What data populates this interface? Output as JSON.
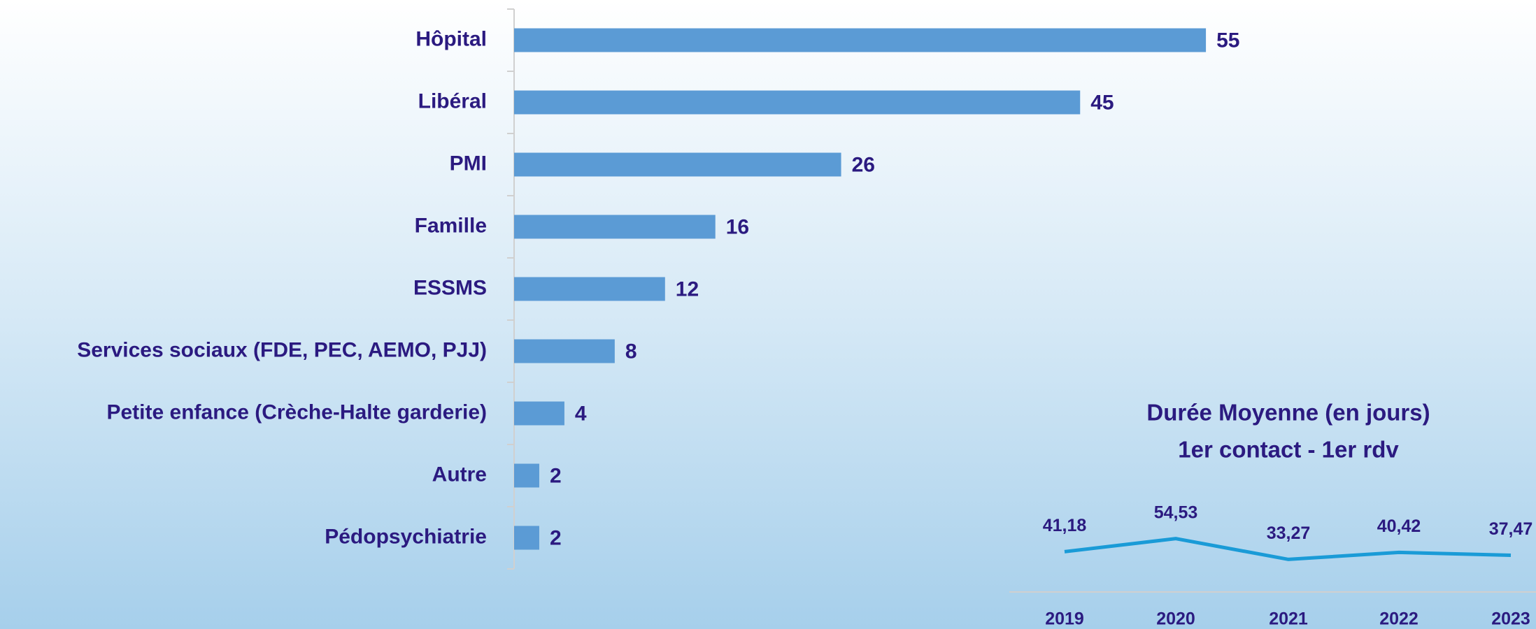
{
  "chart_data": [
    {
      "type": "hbar",
      "categories": [
        "Hôpital",
        "Libéral",
        "PMI",
        "Famille",
        "ESSMS",
        "Services sociaux (FDE, PEC, AEMO, PJJ)",
        "Petite enfance (Crèche-Halte garderie)",
        "Autre",
        "Pédopsychiatrie"
      ],
      "values": [
        55,
        45,
        26,
        16,
        12,
        8,
        4,
        2,
        2
      ],
      "color": "#5b9bd5",
      "xlim": [
        0,
        60
      ]
    },
    {
      "type": "line",
      "title": "Durée Moyenne (en jours)",
      "subtitle": "1er contact - 1er rdv",
      "categories": [
        "2019",
        "2020",
        "2021",
        "2022",
        "2023"
      ],
      "values": [
        41.18,
        54.53,
        33.27,
        40.42,
        37.47
      ],
      "value_labels": [
        "41,18",
        "54,53",
        "33,27",
        "40,42",
        "37,47"
      ],
      "color": "#1a9bd7",
      "ylim": [
        0,
        100
      ]
    }
  ]
}
